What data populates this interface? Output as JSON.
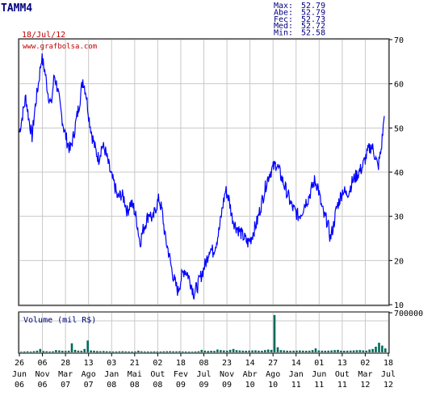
{
  "ticker": "TAMM4",
  "date": "18/Jul/12",
  "watermark": "www.grafbolsa.com",
  "stats": [
    {
      "label": "Max:",
      "value": "52.79"
    },
    {
      "label": "Abe:",
      "value": "52.79"
    },
    {
      "label": "Fec:",
      "value": "52.73"
    },
    {
      "label": "Med:",
      "value": "52.72"
    },
    {
      "label": "Min:",
      "value": "52.58"
    }
  ],
  "colors": {
    "price_line": "#0000ff",
    "volume_bars": "#006b5a",
    "ticker_text": "#000080",
    "date_text": "#c00000",
    "stats_text": "#000080",
    "grid": "#c8c8c8",
    "frame": "#000000",
    "background": "#ffffff"
  },
  "chart_data": [
    {
      "type": "line",
      "title": "TAMM4",
      "ylim": [
        10,
        70
      ],
      "y_ticks": [
        10,
        20,
        30,
        40,
        50,
        60,
        70
      ],
      "y_axis_side": "right",
      "grid": true,
      "x_tick_labels": [
        {
          "top": "26",
          "bottom": "Jun",
          "year": "06"
        },
        {
          "top": "06",
          "bottom": "Nov",
          "year": "06"
        },
        {
          "top": "28",
          "bottom": "Mar",
          "year": "07"
        },
        {
          "top": "13",
          "bottom": "Ago",
          "year": "07"
        },
        {
          "top": "03",
          "bottom": "Jan",
          "year": "08"
        },
        {
          "top": "21",
          "bottom": "Mai",
          "year": "08"
        },
        {
          "top": "02",
          "bottom": "Out",
          "year": "08"
        },
        {
          "top": "18",
          "bottom": "Fev",
          "year": "09"
        },
        {
          "top": "08",
          "bottom": "Jul",
          "year": "09"
        },
        {
          "top": "23",
          "bottom": "Nov",
          "year": "09"
        },
        {
          "top": "14",
          "bottom": "Abr",
          "year": "10"
        },
        {
          "top": "27",
          "bottom": "Ago",
          "year": "10"
        },
        {
          "top": "14",
          "bottom": "Jan",
          "year": "11"
        },
        {
          "top": "01",
          "bottom": "Jun",
          "year": "11"
        },
        {
          "top": "13",
          "bottom": "Out",
          "year": "11"
        },
        {
          "top": "02",
          "bottom": "Mar",
          "year": "12"
        },
        {
          "top": "18",
          "bottom": "Jul",
          "year": "12"
        }
      ],
      "series": [
        {
          "values": [
            49,
            53,
            57,
            52,
            48,
            55,
            60,
            66,
            63,
            58,
            55,
            62,
            59,
            54,
            50,
            47,
            45,
            48,
            52,
            56,
            61,
            58,
            52,
            48,
            45,
            43,
            46,
            45,
            42,
            39,
            37,
            34,
            35,
            34,
            31,
            33,
            32,
            29,
            24,
            27,
            29,
            31,
            29,
            32,
            34,
            31,
            25,
            22,
            18,
            15,
            13,
            16,
            18,
            17,
            15,
            12.5,
            14,
            16,
            18,
            20,
            23,
            22,
            24,
            27,
            32,
            36,
            34,
            30,
            28,
            27,
            26,
            25,
            24,
            25,
            27,
            29,
            32,
            35,
            38,
            40,
            41,
            42,
            40,
            38,
            36,
            34,
            32,
            31,
            30,
            31,
            33,
            34,
            36,
            38,
            37,
            33,
            30,
            29,
            25,
            28,
            32,
            34,
            36,
            35,
            36,
            38,
            39,
            40,
            41,
            43,
            45,
            46,
            44,
            41,
            45,
            52.7
          ]
        }
      ]
    },
    {
      "type": "bar",
      "title": "Volume (mil R$)",
      "ylim": [
        0,
        700000
      ],
      "y_ticks": [
        700000
      ],
      "y_axis_side": "right",
      "grid": true,
      "values": [
        12000,
        15000,
        18000,
        14000,
        22000,
        30000,
        60000,
        25000,
        20000,
        16000,
        18000,
        40000,
        35000,
        28000,
        26000,
        30000,
        160000,
        45000,
        30000,
        28000,
        60000,
        210000,
        35000,
        30000,
        25000,
        22000,
        24000,
        20000,
        18000,
        16000,
        15000,
        18000,
        20000,
        17000,
        15000,
        14000,
        16000,
        30000,
        18000,
        16000,
        15000,
        14000,
        17000,
        16000,
        15000,
        18000,
        20000,
        22000,
        19000,
        18000,
        20000,
        16000,
        15000,
        14000,
        13000,
        15000,
        20000,
        45000,
        30000,
        25000,
        28000,
        26000,
        50000,
        40000,
        35000,
        30000,
        45000,
        60000,
        40000,
        35000,
        30000,
        28000,
        32000,
        34000,
        36000,
        30000,
        28000,
        40000,
        50000,
        45000,
        660000,
        90000,
        40000,
        35000,
        30000,
        28000,
        30000,
        32000,
        35000,
        30000,
        28000,
        30000,
        40000,
        70000,
        35000,
        30000,
        28000,
        30000,
        35000,
        40000,
        45000,
        30000,
        28000,
        30000,
        32000,
        35000,
        38000,
        40000,
        35000,
        30000,
        50000,
        60000,
        100000,
        170000,
        120000,
        70000
      ]
    }
  ]
}
